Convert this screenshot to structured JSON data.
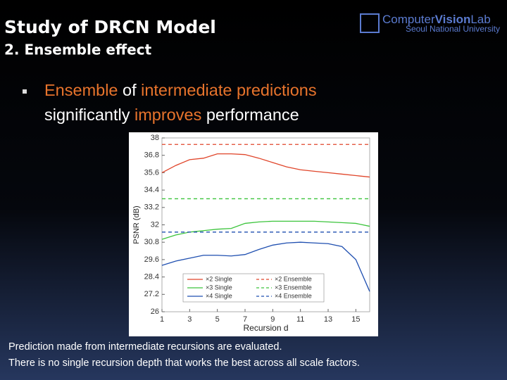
{
  "title": "Study of DRCN Model",
  "subtitle": "2. Ensemble effect",
  "logo": {
    "parts": [
      "Computer",
      "Vision",
      "Lab"
    ],
    "university": "Seoul National University"
  },
  "bullet": {
    "lines": [
      [
        {
          "text": "Ensemble",
          "color": "#e8742c"
        },
        {
          "text": "of",
          "color": "#ffffff"
        },
        {
          "text": "intermediate predictions",
          "color": "#e8742c"
        }
      ],
      [
        {
          "text": "significantly",
          "color": "#ffffff"
        },
        {
          "text": "improves",
          "color": "#e8742c"
        },
        {
          "text": "performance",
          "color": "#ffffff"
        }
      ]
    ]
  },
  "caption": [
    "Prediction made from intermediate recursions are evaluated.",
    "There is no single recursion depth that works the best across all scale factors."
  ],
  "chart_data": {
    "type": "line",
    "x_label": "Recursion d",
    "y_label": "PSNR (dB)",
    "x": [
      1,
      2,
      3,
      4,
      5,
      6,
      7,
      8,
      9,
      10,
      11,
      12,
      13,
      14,
      15,
      16
    ],
    "xlim": [
      1,
      16
    ],
    "xticks": [
      1,
      3,
      5,
      7,
      9,
      11,
      13,
      15
    ],
    "ylim": [
      26,
      38
    ],
    "yticks": [
      26,
      27.2,
      28.4,
      29.6,
      30.8,
      32,
      33.2,
      34.4,
      35.6,
      36.8,
      38
    ],
    "grid": false,
    "legend": "lower-left",
    "series": [
      {
        "name": "×2 Single",
        "color": "#e0452a",
        "dash": false,
        "values": [
          35.6,
          36.1,
          36.5,
          36.6,
          36.9,
          36.9,
          36.85,
          36.6,
          36.3,
          36.0,
          35.8,
          35.7,
          35.6,
          35.5,
          35.4,
          35.3
        ]
      },
      {
        "name": "×3 Single",
        "color": "#3cc43c",
        "dash": false,
        "values": [
          31.0,
          31.3,
          31.5,
          31.6,
          31.7,
          31.75,
          32.1,
          32.2,
          32.25,
          32.25,
          32.25,
          32.25,
          32.2,
          32.15,
          32.1,
          31.9
        ]
      },
      {
        "name": "×4 Single",
        "color": "#1f4fb0",
        "dash": false,
        "values": [
          29.2,
          29.5,
          29.7,
          29.9,
          29.9,
          29.85,
          29.95,
          30.3,
          30.6,
          30.75,
          30.8,
          30.75,
          30.7,
          30.5,
          29.6,
          27.4
        ]
      },
      {
        "name": "×2 Ensemble",
        "color": "#e0452a",
        "dash": true,
        "values": [
          37.55,
          37.55,
          37.55,
          37.55,
          37.55,
          37.55,
          37.55,
          37.55,
          37.55,
          37.55,
          37.55,
          37.55,
          37.55,
          37.55,
          37.55,
          37.55
        ]
      },
      {
        "name": "×3 Ensemble",
        "color": "#3cc43c",
        "dash": true,
        "values": [
          33.8,
          33.8,
          33.8,
          33.8,
          33.8,
          33.8,
          33.8,
          33.8,
          33.8,
          33.8,
          33.8,
          33.8,
          33.8,
          33.8,
          33.8,
          33.8
        ]
      },
      {
        "name": "×4 Ensemble",
        "color": "#1f4fb0",
        "dash": true,
        "values": [
          31.5,
          31.5,
          31.5,
          31.5,
          31.5,
          31.5,
          31.5,
          31.5,
          31.5,
          31.5,
          31.5,
          31.5,
          31.5,
          31.5,
          31.5,
          31.5
        ]
      }
    ]
  }
}
